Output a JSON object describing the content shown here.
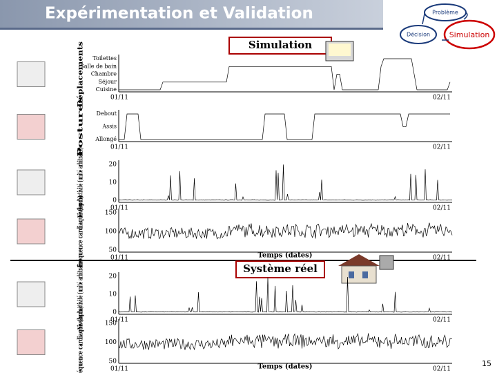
{
  "header": {
    "title": "Expérimentation et Validation"
  },
  "cycle": {
    "nodes": [
      "Problème",
      "Décision",
      "Simulation"
    ]
  },
  "sections": {
    "simulation": "Simulation",
    "real": "Système réel"
  },
  "panels": [
    {
      "ylabel": "Déplacements",
      "yticks": [
        "Toilettes",
        "Salle de bain",
        "Chambre",
        "Séjour",
        "Cuisine"
      ],
      "xticks": [
        "01/11",
        "02/11"
      ]
    },
    {
      "ylabel": "Postures",
      "yticks": [
        "Debout",
        "Assis",
        "Allongé"
      ],
      "xticks": [
        "01/11",
        "02/11"
      ]
    },
    {
      "ylabel": "Niveau d'activité (unité arbitraire)",
      "yticks": [
        20,
        10,
        0
      ],
      "xticks": [
        "01/11",
        "02/11"
      ]
    },
    {
      "ylabel": "Fréquence cardiaque (bpm)",
      "yticks": [
        150,
        100,
        50
      ],
      "xticks": [
        "01/11",
        "02/11"
      ],
      "xlabel": "Temps (dates)"
    },
    {
      "ylabel": "Niveau d'activité (unité arbitraire)",
      "yticks": [
        20,
        10,
        0
      ],
      "xticks": [
        "01/11",
        "02/11"
      ]
    },
    {
      "ylabel": "Fréquence cardiaque (bpm)",
      "yticks": [
        150,
        100,
        50
      ],
      "xticks": [
        "01/11",
        "02/11"
      ],
      "xlabel": "Temps (dates)"
    }
  ],
  "page_number": "15"
}
